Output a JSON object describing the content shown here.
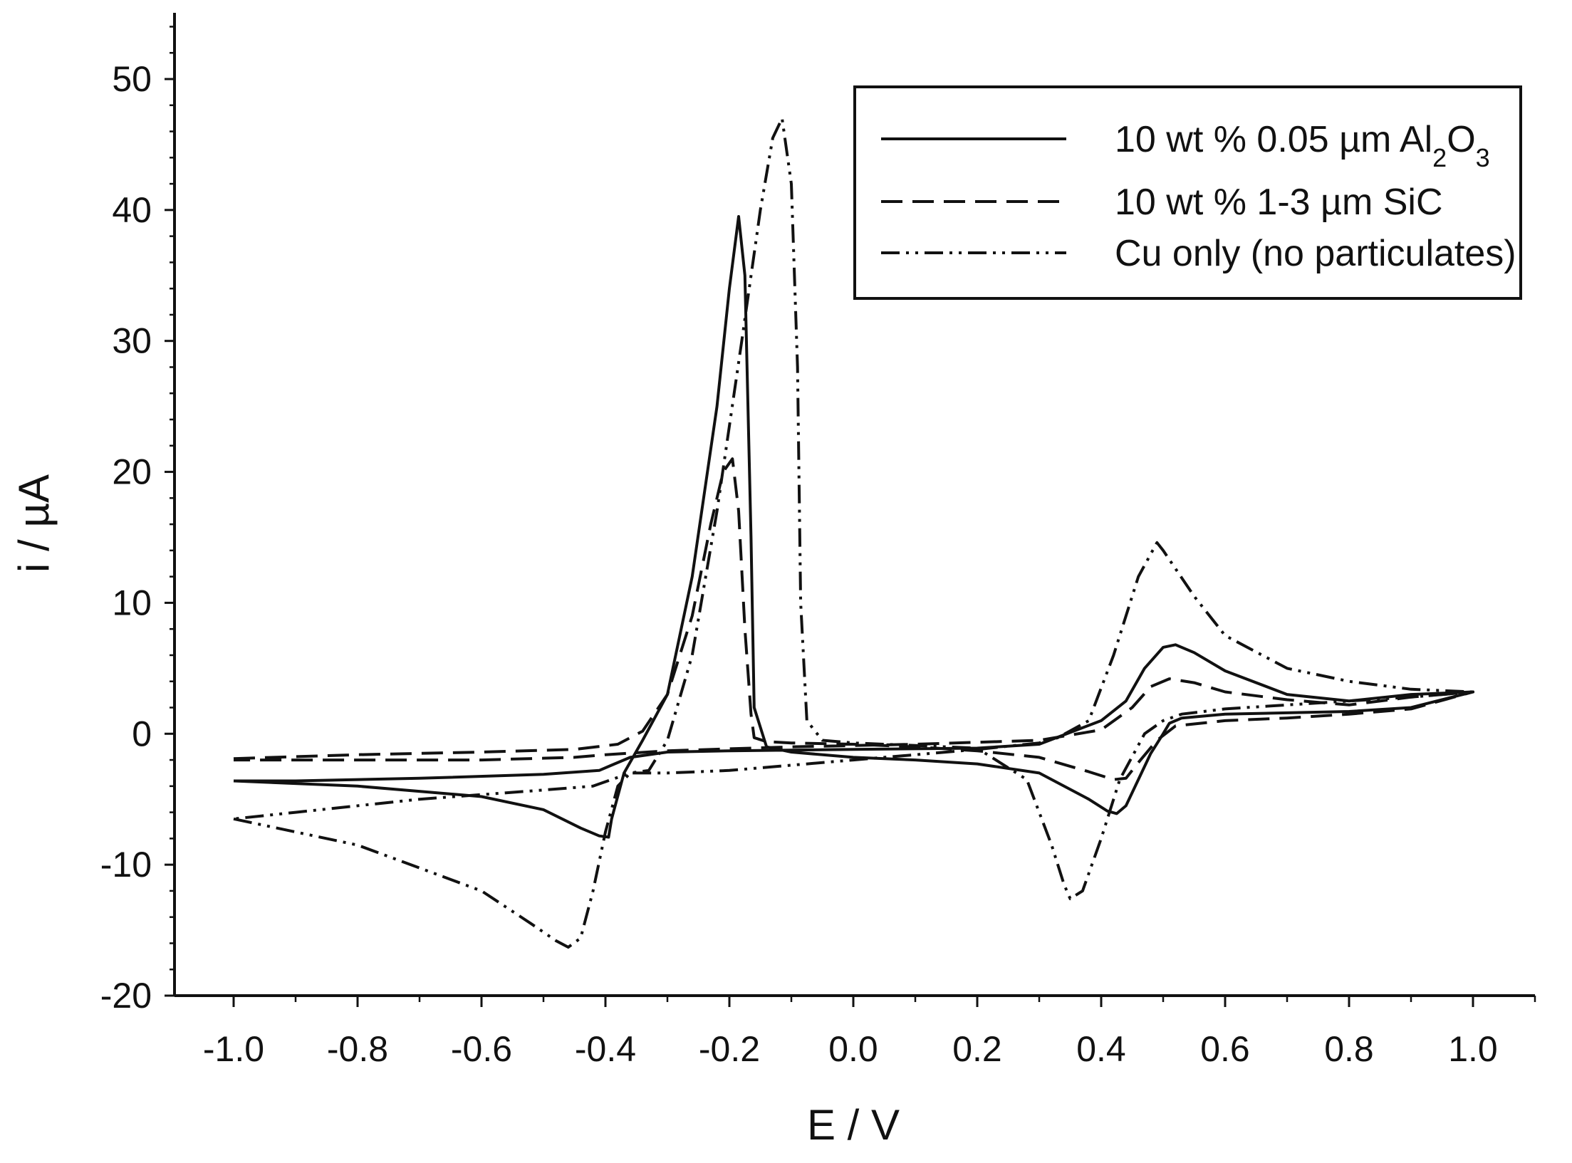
{
  "chart_data": {
    "type": "line",
    "title": "",
    "xlabel": "E / V",
    "ylabel": "i / µA",
    "xlim": [
      -1.1,
      1.1
    ],
    "ylim": [
      -20,
      55
    ],
    "x_ticks": [
      -1.0,
      -0.8,
      -0.6,
      -0.4,
      -0.2,
      0.0,
      0.2,
      0.4,
      0.6,
      0.8,
      1.0
    ],
    "x_tick_labels": [
      "-1.0",
      "-0.8",
      "-0.6",
      "-0.4",
      "-0.2",
      "0.0",
      "0.2",
      "0.4",
      "0.6",
      "0.8",
      "1.0"
    ],
    "y_ticks": [
      -20,
      -10,
      0,
      10,
      20,
      30,
      40,
      50
    ],
    "y_tick_labels": [
      "-20",
      "-10",
      "0",
      "10",
      "20",
      "30",
      "40",
      "50"
    ],
    "grid": false,
    "legend_position": "top-right",
    "series": [
      {
        "name": "10 wt % 0.05 µm Al₂O₃",
        "legend_main": "10 wt % 0.05 µm Al",
        "legend_sub1": "2",
        "legend_mid": "O",
        "legend_sub2": "3",
        "style": "solid",
        "color": "#111111",
        "x": [
          -1.0,
          -0.8,
          -0.6,
          -0.5,
          -0.44,
          -0.41,
          -0.395,
          -0.39,
          -0.37,
          -0.34,
          -0.3,
          -0.26,
          -0.22,
          -0.2,
          -0.185,
          -0.175,
          -0.165,
          -0.16,
          -0.14,
          -0.1,
          0.0,
          0.1,
          0.2,
          0.3,
          0.38,
          0.41,
          0.425,
          0.44,
          0.46,
          0.48,
          0.5,
          0.51,
          0.53,
          0.6,
          0.7,
          0.8,
          0.9,
          1.0,
          0.9,
          0.8,
          0.7,
          0.6,
          0.55,
          0.52,
          0.5,
          0.47,
          0.44,
          0.4,
          0.3,
          0.2,
          0.0,
          -0.2,
          -0.3,
          -0.36,
          -0.39,
          -0.41,
          -0.5,
          -0.7,
          -0.9,
          -1.0
        ],
        "y": [
          -3.6,
          -4.0,
          -4.8,
          -5.8,
          -7.2,
          -7.8,
          -7.9,
          -6.5,
          -3.0,
          -0.5,
          3.0,
          12.0,
          25.0,
          34.0,
          39.5,
          35.0,
          15.0,
          2.0,
          -1.0,
          -1.4,
          -1.8,
          -2.0,
          -2.3,
          -3.0,
          -5.0,
          -5.9,
          -6.1,
          -5.5,
          -3.5,
          -1.5,
          0.0,
          0.8,
          1.2,
          1.5,
          1.6,
          1.7,
          2.0,
          3.2,
          3.0,
          2.5,
          3.0,
          4.8,
          6.2,
          6.8,
          6.6,
          5.0,
          2.5,
          1.0,
          -0.8,
          -1.1,
          -1.2,
          -1.3,
          -1.4,
          -1.8,
          -2.4,
          -2.8,
          -3.1,
          -3.4,
          -3.6,
          -3.6
        ]
      },
      {
        "name": "10 wt % 1-3 µm SiC",
        "style": "dashed",
        "color": "#111111",
        "x": [
          -1.0,
          -0.8,
          -0.6,
          -0.45,
          -0.38,
          -0.34,
          -0.3,
          -0.26,
          -0.23,
          -0.21,
          -0.195,
          -0.185,
          -0.175,
          -0.165,
          -0.16,
          -0.14,
          -0.1,
          0.0,
          0.1,
          0.2,
          0.3,
          0.38,
          0.42,
          0.44,
          0.46,
          0.49,
          0.52,
          0.6,
          0.7,
          0.8,
          0.9,
          1.0,
          0.9,
          0.8,
          0.7,
          0.6,
          0.55,
          0.51,
          0.48,
          0.45,
          0.4,
          0.3,
          0.1,
          -0.1,
          -0.3,
          -0.4,
          -0.45,
          -0.6,
          -0.8,
          -1.0
        ],
        "y": [
          -1.9,
          -1.6,
          -1.4,
          -1.2,
          -0.8,
          0.2,
          3.0,
          9.0,
          16.0,
          20.0,
          21.0,
          17.0,
          8.0,
          1.5,
          -0.3,
          -0.6,
          -0.7,
          -0.8,
          -1.0,
          -1.3,
          -1.8,
          -2.9,
          -3.5,
          -3.4,
          -2.2,
          -0.5,
          0.6,
          1.0,
          1.2,
          1.5,
          1.9,
          3.2,
          2.8,
          2.2,
          2.6,
          3.2,
          3.9,
          4.2,
          3.6,
          2.0,
          0.3,
          -0.5,
          -0.8,
          -1.0,
          -1.3,
          -1.6,
          -1.8,
          -2.0,
          -2.0,
          -2.0
        ]
      },
      {
        "name": "Cu only (no particulates)",
        "style": "dash-dot-dot",
        "color": "#111111",
        "x": [
          -1.0,
          -0.8,
          -0.6,
          -0.52,
          -0.48,
          -0.46,
          -0.44,
          -0.42,
          -0.4,
          -0.38,
          -0.36,
          -0.33,
          -0.3,
          -0.26,
          -0.22,
          -0.18,
          -0.15,
          -0.13,
          -0.115,
          -0.1,
          -0.09,
          -0.085,
          -0.075,
          -0.05,
          0.0,
          0.1,
          0.2,
          0.28,
          0.32,
          0.34,
          0.35,
          0.37,
          0.4,
          0.43,
          0.47,
          0.5,
          0.53,
          0.6,
          0.7,
          0.8,
          0.9,
          1.0,
          0.9,
          0.8,
          0.7,
          0.6,
          0.55,
          0.5,
          0.49,
          0.46,
          0.42,
          0.38,
          0.33,
          0.3,
          0.2,
          0.0,
          -0.2,
          -0.3,
          -0.36,
          -0.39,
          -0.42,
          -0.5,
          -0.7,
          -0.9,
          -1.0
        ],
        "y": [
          -6.5,
          -8.5,
          -12.0,
          -14.5,
          -15.8,
          -16.3,
          -15.6,
          -12.0,
          -7.5,
          -4.0,
          -3.0,
          -2.8,
          -0.5,
          6.0,
          17.0,
          30.0,
          40.0,
          45.5,
          47.0,
          42.0,
          28.0,
          10.0,
          1.0,
          -0.5,
          -0.7,
          -0.9,
          -1.1,
          -3.5,
          -8.5,
          -11.5,
          -12.6,
          -12.0,
          -8.0,
          -3.5,
          0.0,
          1.0,
          1.5,
          1.9,
          2.2,
          2.5,
          2.8,
          3.2,
          3.4,
          4.0,
          5.0,
          7.5,
          10.5,
          14.0,
          14.6,
          12.0,
          6.0,
          1.0,
          -0.3,
          -0.7,
          -1.2,
          -2.0,
          -2.8,
          -3.0,
          -3.0,
          -3.5,
          -4.0,
          -4.3,
          -5.0,
          -6.0,
          -6.5
        ]
      }
    ]
  }
}
